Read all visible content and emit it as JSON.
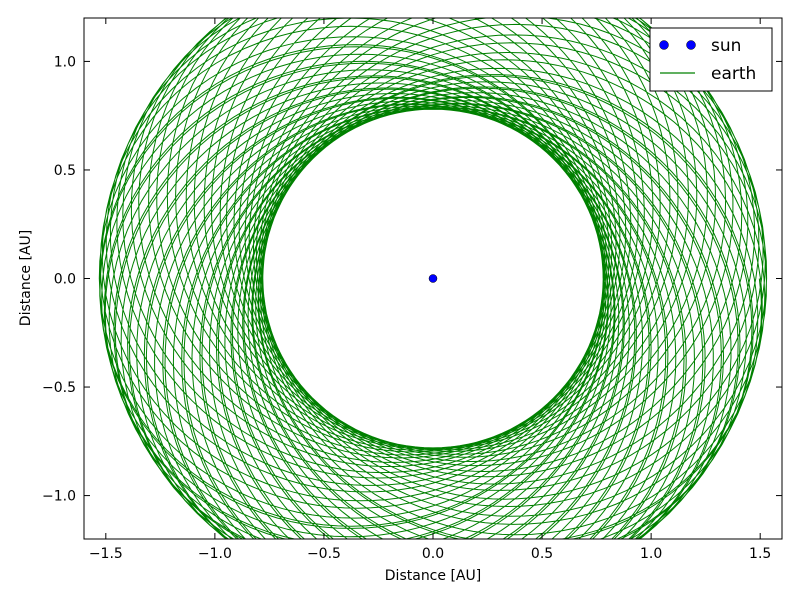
{
  "chart_data": {
    "type": "line",
    "title": "",
    "xlabel": "Distance [AU]",
    "ylabel": "Distance [AU]",
    "xlim": [
      -1.6,
      1.6
    ],
    "ylim": [
      -1.2,
      1.2
    ],
    "xticks": [
      -1.5,
      -1.0,
      -0.5,
      0.0,
      0.5,
      1.0,
      1.5
    ],
    "xtick_labels": [
      "−1.5",
      "−1.0",
      "−0.5",
      "0.0",
      "0.5",
      "1.0",
      "1.5"
    ],
    "yticks": [
      1.0,
      0.5,
      0.0,
      -0.5,
      -1.0
    ],
    "ytick_labels": [
      "1.0",
      "0.5",
      "0.0",
      "−0.5",
      "−1.0"
    ],
    "grid": false,
    "legend": {
      "position": "top-right"
    },
    "series": [
      {
        "name": "sun",
        "kind": "marker",
        "color": "#0000ff",
        "points": [
          [
            0.0,
            0.0
          ]
        ]
      },
      {
        "name": "earth",
        "kind": "line",
        "color": "#008000",
        "orbit": {
          "r_min": 0.78,
          "r_max": 1.53
        }
      }
    ]
  }
}
